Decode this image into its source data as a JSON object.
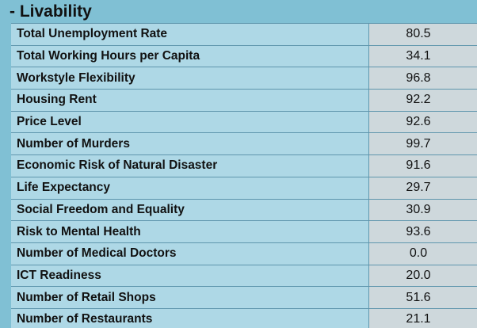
{
  "section": {
    "title": "- Livability"
  },
  "metrics": [
    {
      "label": "Total Unemployment Rate",
      "value": "80.5"
    },
    {
      "label": "Total Working Hours per Capita",
      "value": "34.1"
    },
    {
      "label": "Workstyle Flexibility",
      "value": "96.8"
    },
    {
      "label": "Housing Rent",
      "value": "92.2"
    },
    {
      "label": "Price Level",
      "value": "92.6"
    },
    {
      "label": "Number of Murders",
      "value": "99.7"
    },
    {
      "label": "Economic Risk of Natural Disaster",
      "value": "91.6"
    },
    {
      "label": "Life Expectancy",
      "value": "29.7"
    },
    {
      "label": "Social Freedom and Equality",
      "value": "30.9"
    },
    {
      "label": "Risk to Mental Health",
      "value": "93.6"
    },
    {
      "label": "Number of Medical Doctors",
      "value": "0.0"
    },
    {
      "label": "ICT Readiness",
      "value": "20.0"
    },
    {
      "label": "Number of Retail Shops",
      "value": "51.6"
    },
    {
      "label": "Number of Restaurants",
      "value": "21.1"
    }
  ],
  "colors": {
    "header_bg": "#80c0d4",
    "label_cell_bg": "#aed8e6",
    "value_cell_bg": "#ced8dc",
    "border": "#5f96ad"
  }
}
